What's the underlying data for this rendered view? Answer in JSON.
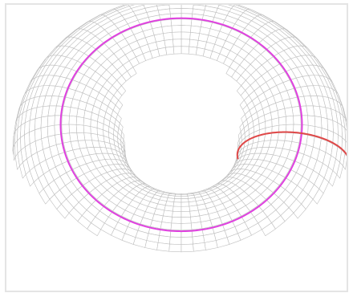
{
  "figure": {
    "subject": "torus",
    "mesh": {
      "major_segments": 72,
      "minor_segments": 48
    },
    "highlights": [
      {
        "name": "toroidal-circle",
        "color": "#e040e0"
      },
      {
        "name": "poloidal-circle",
        "color": "#e04848"
      }
    ],
    "colors": {
      "background": "#ffffff",
      "frame": "#e4e4e4",
      "mesh_stroke": "#bfbfbf"
    }
  }
}
